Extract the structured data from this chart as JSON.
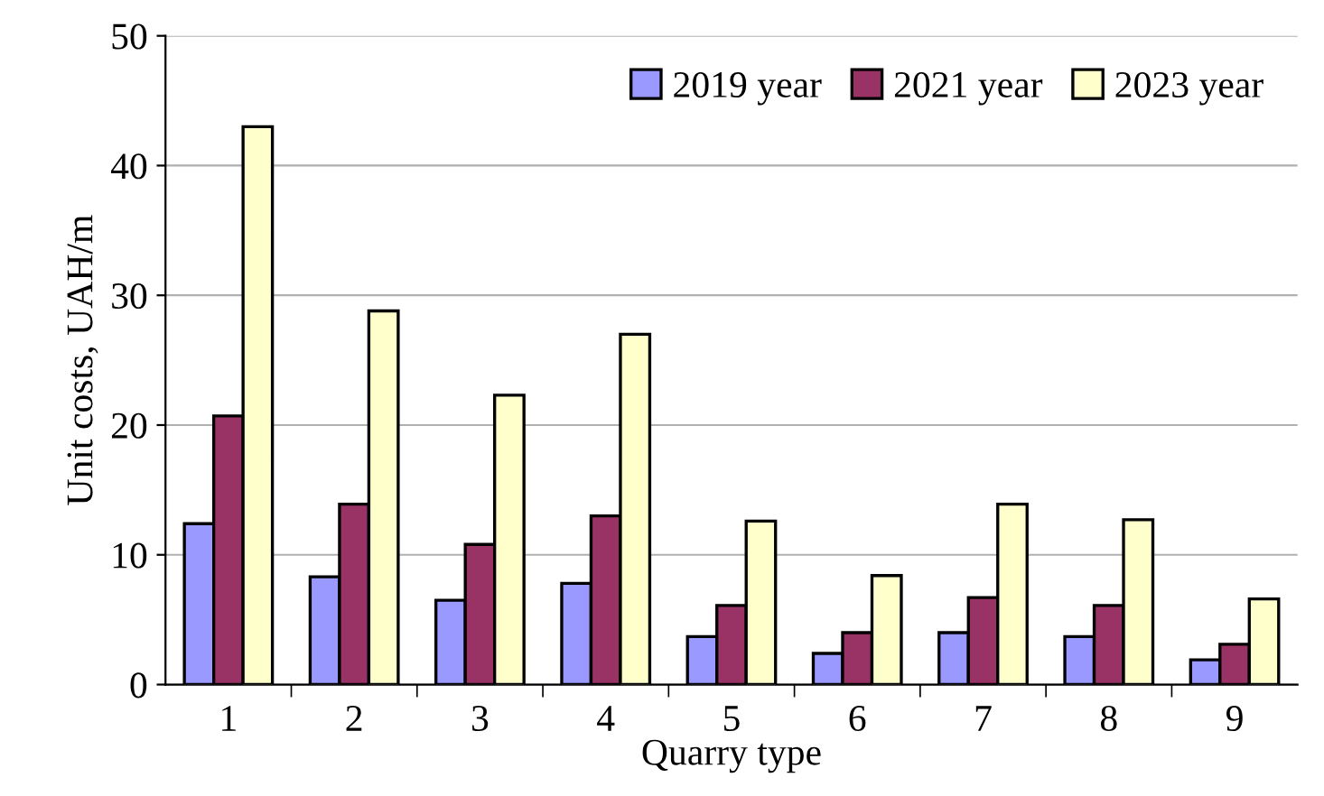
{
  "chart_data": {
    "type": "bar",
    "xlabel": "Quarry type",
    "ylabel": "Unit costs, UAH/m",
    "categories": [
      "1",
      "2",
      "3",
      "4",
      "5",
      "6",
      "7",
      "8",
      "9"
    ],
    "series": [
      {
        "name": "2019 year",
        "color": "#9999ff",
        "values": [
          12.4,
          8.3,
          6.5,
          7.8,
          3.7,
          2.4,
          4.0,
          3.7,
          1.9
        ]
      },
      {
        "name": "2021 year",
        "color": "#993366",
        "values": [
          20.7,
          13.9,
          10.8,
          13.0,
          6.1,
          4.0,
          6.7,
          6.1,
          3.1
        ]
      },
      {
        "name": "2023 year",
        "color": "#ffffcc",
        "values": [
          43.0,
          28.8,
          22.3,
          27.0,
          12.6,
          8.4,
          13.9,
          12.7,
          6.6
        ]
      }
    ],
    "ylim": [
      0,
      50
    ],
    "yticks": [
      0,
      10,
      20,
      30,
      40,
      50
    ],
    "grid": "y",
    "legend": "top right"
  }
}
